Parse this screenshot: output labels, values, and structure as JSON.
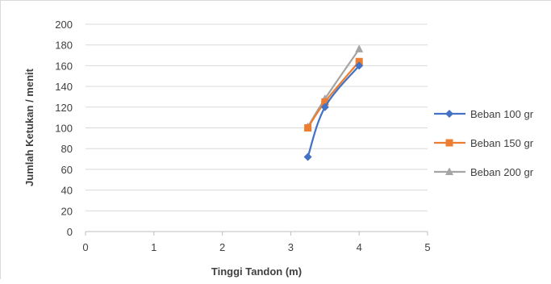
{
  "chart_data": {
    "type": "line",
    "title": "",
    "xlabel": "Tinggi Tandon (m)",
    "ylabel": "Jumlah Ketukan / menit",
    "xlim": [
      0,
      5
    ],
    "ylim": [
      0,
      200
    ],
    "xticks": [
      0,
      1,
      2,
      3,
      4,
      5
    ],
    "yticks": [
      0,
      20,
      40,
      60,
      80,
      100,
      120,
      140,
      160,
      180,
      200
    ],
    "grid": "horizontal",
    "legend_position": "right",
    "series": [
      {
        "name": "Beban 100 gr",
        "color": "#4472C4",
        "marker": "diamond",
        "x": [
          3.25,
          3.5,
          4
        ],
        "y": [
          72,
          120,
          160
        ]
      },
      {
        "name": "Beban 150 gr",
        "color": "#ED7D31",
        "marker": "square",
        "x": [
          3.25,
          3.5,
          4
        ],
        "y": [
          100,
          125,
          164
        ]
      },
      {
        "name": "Beban 200 gr",
        "color": "#A5A5A5",
        "marker": "triangle",
        "x": [
          3.25,
          3.5,
          4
        ],
        "y": [
          101,
          128,
          176
        ]
      }
    ]
  }
}
